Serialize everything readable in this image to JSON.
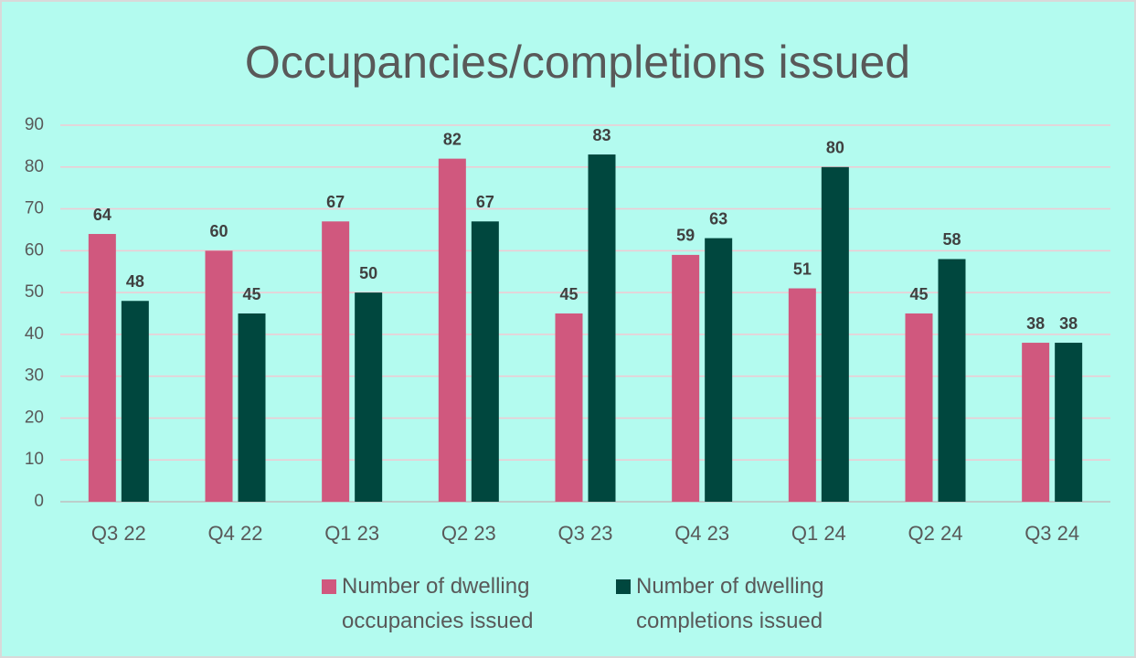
{
  "chart_data": {
    "type": "bar",
    "title": "Occupancies/completions issued",
    "categories": [
      "Q3 22",
      "Q4 22",
      "Q1 23",
      "Q2 23",
      "Q3 23",
      "Q4 23",
      "Q1 24",
      "Q2 24",
      "Q3 24"
    ],
    "series": [
      {
        "name": "Number of dwelling occupancies issued",
        "color": "#d0587e",
        "values": [
          64,
          60,
          67,
          82,
          45,
          59,
          51,
          45,
          38
        ]
      },
      {
        "name": "Number of dwelling completions issued",
        "color": "#00473e",
        "values": [
          48,
          45,
          50,
          67,
          83,
          63,
          80,
          58,
          38
        ]
      }
    ],
    "ylim": [
      0,
      90
    ],
    "yticks": [
      0,
      10,
      20,
      30,
      40,
      50,
      60,
      70,
      80,
      90
    ],
    "grid": true,
    "legend": "bottom"
  }
}
